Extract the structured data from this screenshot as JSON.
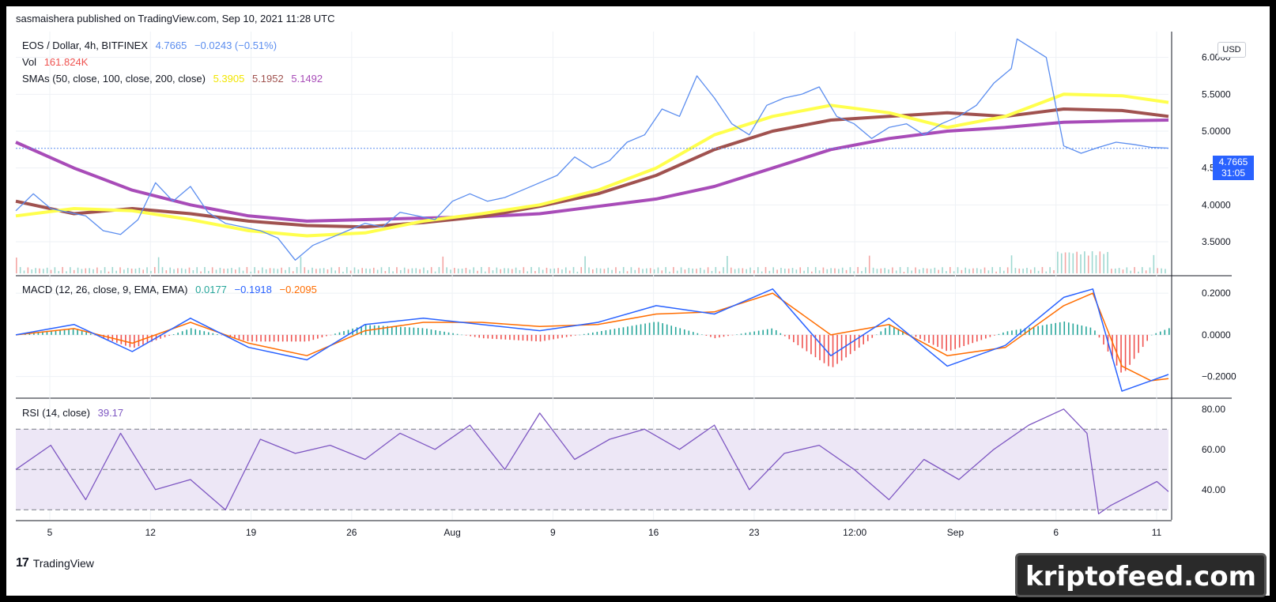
{
  "header": {
    "publisher_line": "sasmaishera published on TradingView.com, Sep 10, 2021 11:28 UTC"
  },
  "price_pane": {
    "symbol_label": "EOS / Dollar, 4h, BITFINEX",
    "last_price": "4.7665",
    "change": "−0.0243 (−0.51%)",
    "vol_label": "Vol",
    "vol_value": "161.824K",
    "sma_label": "SMAs (50, close, 100, close, 200, close)",
    "sma50_value": "5.3905",
    "sma100_value": "5.1952",
    "sma200_value": "5.1492",
    "currency_badge": "USD",
    "price_tag": "4.7665",
    "countdown": "31:05"
  },
  "macd_pane": {
    "label": "MACD (12, 26, close, 9, EMA, EMA)",
    "hist_value": "0.0177",
    "macd_value": "−0.1918",
    "signal_value": "−0.2095"
  },
  "rsi_pane": {
    "label": "RSI (14, close)",
    "value": "39.17"
  },
  "footer": {
    "logo_text": "TradingView",
    "logo_mark": "17"
  },
  "watermark": "kriptofeed.com",
  "colors": {
    "price_line": "#5b8def",
    "sma50": "#ffff4d",
    "sma100": "#a0524f",
    "sma200": "#a84cb8",
    "macd_line": "#2962ff",
    "signal_line": "#ff6d00",
    "hist_up": "#26a69a",
    "hist_down": "#ef5350",
    "rsi_line": "#7e57c2",
    "rsi_band": "#ede7f6"
  },
  "chart_data": [
    {
      "type": "line",
      "title": "EOS / Dollar, 4h, BITFINEX",
      "x_ticks": [
        "5",
        "12",
        "19",
        "26",
        "Aug",
        "9",
        "16",
        "23",
        "12:00",
        "Sep",
        "6",
        "11"
      ],
      "y_ticks": [
        "3.5000",
        "4.0000",
        "4.5000",
        "5.0000",
        "5.5000",
        "6.0000"
      ],
      "ylim": [
        3.05,
        6.35
      ],
      "series": [
        {
          "name": "EOS / Dollar",
          "x": [
            0,
            3,
            6,
            9,
            12,
            15,
            18,
            21,
            24,
            27,
            30,
            33,
            36,
            39,
            42,
            45,
            48,
            51,
            54,
            57,
            60,
            63,
            66,
            69,
            72,
            75,
            78,
            81,
            84,
            87,
            90,
            93,
            96,
            99,
            102,
            105,
            108,
            111,
            114,
            117,
            120,
            123,
            126,
            129,
            132,
            135,
            138,
            141,
            144,
            147,
            150,
            153,
            156,
            159,
            162,
            165,
            168,
            171,
            172,
            174,
            177,
            180,
            183,
            186,
            189,
            192,
            195,
            198
          ],
          "values": [
            3.92,
            4.15,
            3.95,
            3.9,
            3.85,
            3.65,
            3.6,
            3.8,
            4.3,
            4.05,
            4.25,
            3.9,
            3.75,
            3.7,
            3.65,
            3.55,
            3.25,
            3.45,
            3.55,
            3.65,
            3.75,
            3.7,
            3.9,
            3.85,
            3.8,
            4.05,
            4.15,
            4.05,
            4.1,
            4.2,
            4.3,
            4.4,
            4.65,
            4.5,
            4.6,
            4.85,
            4.95,
            5.3,
            5.2,
            5.75,
            5.45,
            5.1,
            4.95,
            5.35,
            5.45,
            5.5,
            5.6,
            5.2,
            5.1,
            4.9,
            5.05,
            5.1,
            4.95,
            5.1,
            5.2,
            5.35,
            5.65,
            5.85,
            6.25,
            6.15,
            6.0,
            4.8,
            4.7,
            4.78,
            4.85,
            4.82,
            4.78,
            4.77
          ]
        },
        {
          "name": "SMA 50",
          "x": [
            0,
            10,
            20,
            30,
            40,
            50,
            60,
            70,
            80,
            90,
            100,
            110,
            120,
            130,
            140,
            150,
            160,
            170,
            180,
            190,
            198
          ],
          "values": [
            3.85,
            3.95,
            3.92,
            3.8,
            3.65,
            3.58,
            3.62,
            3.78,
            3.88,
            4.0,
            4.2,
            4.5,
            4.95,
            5.2,
            5.35,
            5.25,
            5.05,
            5.2,
            5.5,
            5.48,
            5.39
          ]
        },
        {
          "name": "SMA 100",
          "x": [
            0,
            10,
            20,
            30,
            40,
            50,
            60,
            70,
            80,
            90,
            100,
            110,
            120,
            130,
            140,
            150,
            160,
            170,
            180,
            190,
            198
          ],
          "values": [
            4.05,
            3.88,
            3.95,
            3.88,
            3.78,
            3.72,
            3.7,
            3.76,
            3.84,
            3.98,
            4.15,
            4.4,
            4.75,
            5.0,
            5.15,
            5.2,
            5.25,
            5.2,
            5.3,
            5.28,
            5.2
          ]
        },
        {
          "name": "SMA 200",
          "x": [
            0,
            10,
            20,
            30,
            40,
            50,
            60,
            70,
            80,
            90,
            100,
            110,
            120,
            130,
            140,
            150,
            160,
            170,
            180,
            190,
            198
          ],
          "values": [
            4.85,
            4.5,
            4.2,
            4.0,
            3.85,
            3.78,
            3.8,
            3.82,
            3.84,
            3.88,
            3.98,
            4.08,
            4.25,
            4.5,
            4.75,
            4.9,
            5.0,
            5.05,
            5.12,
            5.14,
            5.15
          ]
        }
      ]
    },
    {
      "type": "line",
      "title": "MACD (12, 26, close, 9, EMA, EMA)",
      "y_ticks": [
        "−0.2000",
        "0.0000",
        "0.2000"
      ],
      "ylim": [
        -0.3,
        0.28
      ],
      "series": [
        {
          "name": "MACD",
          "x": [
            0,
            10,
            20,
            30,
            40,
            50,
            60,
            70,
            80,
            90,
            100,
            110,
            120,
            130,
            140,
            150,
            160,
            170,
            180,
            185,
            190,
            195,
            198
          ],
          "values": [
            0.0,
            0.05,
            -0.08,
            0.08,
            -0.06,
            -0.12,
            0.05,
            0.08,
            0.05,
            0.02,
            0.06,
            0.14,
            0.1,
            0.22,
            -0.1,
            0.08,
            -0.15,
            -0.05,
            0.18,
            0.22,
            -0.27,
            -0.22,
            -0.19
          ]
        },
        {
          "name": "Signal",
          "x": [
            0,
            10,
            20,
            30,
            40,
            50,
            60,
            70,
            80,
            90,
            100,
            110,
            120,
            130,
            140,
            150,
            160,
            170,
            180,
            185,
            190,
            195,
            198
          ],
          "values": [
            0.0,
            0.03,
            -0.04,
            0.06,
            -0.04,
            -0.1,
            0.02,
            0.06,
            0.06,
            0.04,
            0.05,
            0.1,
            0.11,
            0.2,
            0.0,
            0.05,
            -0.1,
            -0.06,
            0.14,
            0.2,
            -0.15,
            -0.22,
            -0.21
          ]
        }
      ]
    },
    {
      "type": "line",
      "title": "RSI (14, close)",
      "y_ticks": [
        "40.00",
        "60.00",
        "80.00"
      ],
      "ylim": [
        25,
        85
      ],
      "series": [
        {
          "name": "RSI",
          "x": [
            0,
            6,
            12,
            18,
            24,
            30,
            36,
            42,
            48,
            54,
            60,
            66,
            72,
            78,
            84,
            90,
            96,
            102,
            108,
            114,
            120,
            126,
            132,
            138,
            144,
            150,
            156,
            162,
            168,
            174,
            180,
            184,
            186,
            188,
            192,
            196,
            198
          ],
          "values": [
            50,
            62,
            35,
            68,
            40,
            45,
            30,
            65,
            58,
            62,
            55,
            68,
            60,
            72,
            50,
            78,
            55,
            65,
            70,
            60,
            72,
            40,
            58,
            62,
            50,
            35,
            55,
            45,
            60,
            72,
            80,
            68,
            28,
            32,
            38,
            44,
            39
          ]
        }
      ]
    }
  ]
}
